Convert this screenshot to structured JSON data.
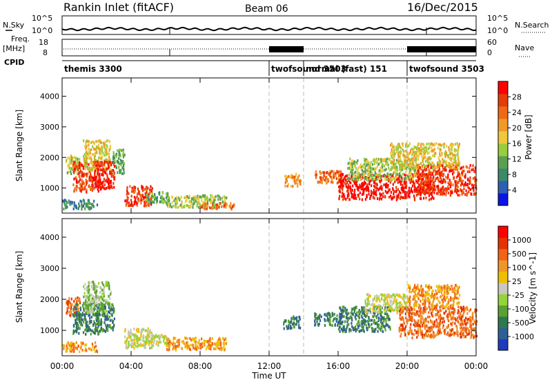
{
  "header": {
    "station": "Rankin Inlet (fitACF)",
    "beam": "Beam 06",
    "date": "16/Dec/2015"
  },
  "top_panels": {
    "nsky_label": "N.Sky",
    "nsky_tick_top": "10^5",
    "nsky_tick_bottom": "10^0",
    "nsearch_label": "N.Search",
    "nsearch_tick_top": "10^5",
    "nsearch_tick_bottom": "10^0",
    "freq_label": "Freq.",
    "freq_unit": "[MHz]",
    "freq_tick_top": "18",
    "freq_tick_bottom": "8",
    "nave_label": "Nave",
    "nave_tick_top": "60",
    "nave_tick_bottom": "0",
    "cpid_label": "CPID"
  },
  "cpid_segments": [
    {
      "label": "themis 3300",
      "start_h": 0
    },
    {
      "label": "twofsound 3503",
      "start_h": 12
    },
    {
      "label": "normal (fast) 151",
      "start_h": 14
    },
    {
      "label": "twofsound 3503",
      "start_h": 20
    }
  ],
  "x_axis": {
    "label": "Time UT",
    "ticks": [
      "00:00",
      "04:00",
      "08:00",
      "12:00",
      "16:00",
      "20:00",
      "00:00"
    ],
    "range_h": [
      0,
      24
    ]
  },
  "chart_data": [
    {
      "type": "heatmap",
      "name": "power",
      "ylabel": "Slant Range [km]",
      "ylim": [
        180,
        4600
      ],
      "yticks": [
        1000,
        2000,
        3000,
        4000
      ],
      "colorbar": {
        "label": "Power [dB]",
        "ticks": [
          "4",
          "8",
          "12",
          "16",
          "20",
          "24",
          "28"
        ],
        "colors": [
          "#0a14e6",
          "#2f5fb4",
          "#3a8a6a",
          "#5aa050",
          "#9acd3c",
          "#f0c83c",
          "#f09a28",
          "#f06a14",
          "#e63c0a",
          "#ff0000"
        ]
      },
      "regions": [
        {
          "t0": 0.2,
          "t1": 1.0,
          "r0": 1500,
          "r1": 2100,
          "level": 4
        },
        {
          "t0": 0.6,
          "t1": 2.2,
          "r0": 900,
          "r1": 1900,
          "level": 8
        },
        {
          "t0": 1.2,
          "t1": 2.8,
          "r0": 1600,
          "r1": 2600,
          "level": 5
        },
        {
          "t0": 1.9,
          "t1": 3.0,
          "r0": 1000,
          "r1": 1900,
          "level": 9
        },
        {
          "t0": 2.9,
          "t1": 3.6,
          "r0": 1500,
          "r1": 2300,
          "level": 3
        },
        {
          "t0": 0.0,
          "t1": 2.0,
          "r0": 350,
          "r1": 650,
          "level": 2
        },
        {
          "t0": 3.6,
          "t1": 5.2,
          "r0": 450,
          "r1": 1100,
          "level": 8
        },
        {
          "t0": 4.8,
          "t1": 6.2,
          "r0": 550,
          "r1": 900,
          "level": 3
        },
        {
          "t0": 6.0,
          "t1": 9.5,
          "r0": 400,
          "r1": 800,
          "level": 4
        },
        {
          "t0": 8.0,
          "t1": 10.0,
          "r0": 350,
          "r1": 550,
          "level": 7
        },
        {
          "t0": 12.8,
          "t1": 13.8,
          "r0": 1100,
          "r1": 1500,
          "level": 6
        },
        {
          "t0": 14.6,
          "t1": 16.2,
          "r0": 1200,
          "r1": 1600,
          "level": 7
        },
        {
          "t0": 16.0,
          "t1": 21.5,
          "r0": 650,
          "r1": 1500,
          "level": 9
        },
        {
          "t0": 16.5,
          "t1": 20.5,
          "r0": 1300,
          "r1": 2000,
          "level": 4
        },
        {
          "t0": 20.5,
          "t1": 24.0,
          "r0": 800,
          "r1": 1800,
          "level": 8
        },
        {
          "t0": 19.0,
          "t1": 23.0,
          "r0": 1700,
          "r1": 2500,
          "level": 5
        }
      ]
    },
    {
      "type": "heatmap",
      "name": "velocity",
      "ylabel": "Slant Range [km]",
      "ylim": [
        180,
        4600
      ],
      "yticks": [
        1000,
        2000,
        3000,
        4000
      ],
      "colorbar": {
        "label": "Velocity [m s^-1]",
        "ticks": [
          "1000",
          "500",
          "100",
          "25",
          "-25",
          "-100",
          "-500",
          "-1000"
        ],
        "colors": [
          "#1e3cbe",
          "#2f5f96",
          "#2e7850",
          "#5aa032",
          "#96d23c",
          "#c8c8c0",
          "#f0be00",
          "#f09628",
          "#f06414",
          "#e63200",
          "#ff0000"
        ]
      },
      "regions": [
        {
          "t0": 0.2,
          "t1": 1.0,
          "r0": 1500,
          "r1": 2100,
          "level": 8
        },
        {
          "t0": 0.6,
          "t1": 2.2,
          "r0": 900,
          "r1": 1900,
          "level": 2
        },
        {
          "t0": 1.2,
          "t1": 2.8,
          "r0": 1600,
          "r1": 2600,
          "level": 4
        },
        {
          "t0": 1.9,
          "t1": 3.0,
          "r0": 1000,
          "r1": 1900,
          "level": 2
        },
        {
          "t0": 0.0,
          "t1": 2.0,
          "r0": 350,
          "r1": 650,
          "level": 7
        },
        {
          "t0": 3.6,
          "t1": 5.2,
          "r0": 450,
          "r1": 1100,
          "level": 5
        },
        {
          "t0": 4.8,
          "t1": 6.2,
          "r0": 550,
          "r1": 900,
          "level": 5
        },
        {
          "t0": 6.0,
          "t1": 9.5,
          "r0": 400,
          "r1": 800,
          "level": 7
        },
        {
          "t0": 12.8,
          "t1": 13.8,
          "r0": 1100,
          "r1": 1500,
          "level": 2
        },
        {
          "t0": 14.6,
          "t1": 16.2,
          "r0": 1200,
          "r1": 1600,
          "level": 2
        },
        {
          "t0": 16.0,
          "t1": 19.0,
          "r0": 1000,
          "r1": 1800,
          "level": 2
        },
        {
          "t0": 17.5,
          "t1": 20.0,
          "r0": 1600,
          "r1": 2200,
          "level": 5
        },
        {
          "t0": 19.5,
          "t1": 24.0,
          "r0": 800,
          "r1": 1800,
          "level": 8
        },
        {
          "t0": 20.0,
          "t1": 23.0,
          "r0": 1800,
          "r1": 2500,
          "level": 7
        }
      ]
    }
  ]
}
